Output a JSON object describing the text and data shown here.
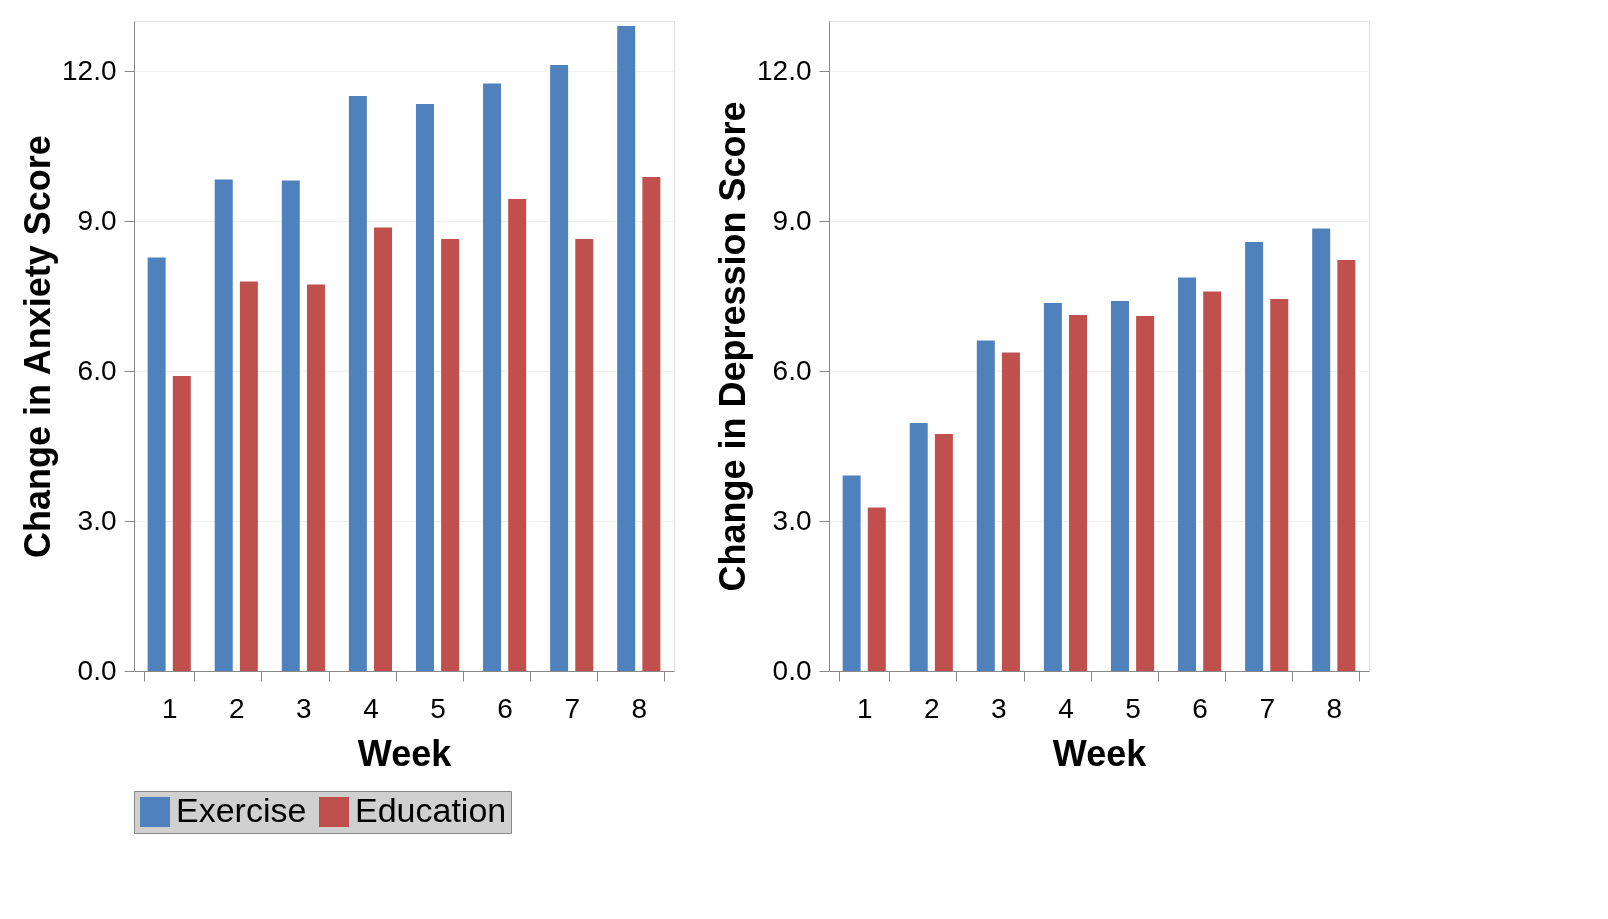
{
  "chart_data": [
    {
      "type": "bar",
      "xlabel": "Week",
      "ylabel": "Change in Anxiety Score",
      "categories": [
        "1",
        "2",
        "3",
        "4",
        "5",
        "6",
        "7",
        "8"
      ],
      "ylim": [
        0,
        13
      ],
      "yticks": [
        {
          "value": 0,
          "label": "0.0"
        },
        {
          "value": 3,
          "label": "3.0"
        },
        {
          "value": 6,
          "label": "6.0"
        },
        {
          "value": 9,
          "label": "9.0"
        },
        {
          "value": 12,
          "label": "12.0"
        }
      ],
      "grid": "y",
      "legend": "bottom",
      "series": [
        {
          "name": "Exercise",
          "color": "#4f81bd",
          "values": [
            8.27,
            9.83,
            9.81,
            11.5,
            11.34,
            11.75,
            12.12,
            12.9
          ]
        },
        {
          "name": "Education",
          "color": "#c0504d",
          "values": [
            5.9,
            7.79,
            7.73,
            8.87,
            8.64,
            9.44,
            8.64,
            9.88
          ]
        }
      ]
    },
    {
      "type": "bar",
      "xlabel": "Week",
      "ylabel": "Change in Depression Score",
      "categories": [
        "1",
        "2",
        "3",
        "4",
        "5",
        "6",
        "7",
        "8"
      ],
      "ylim": [
        0,
        13
      ],
      "yticks": [
        {
          "value": 0,
          "label": "0.0"
        },
        {
          "value": 3,
          "label": "3.0"
        },
        {
          "value": 6,
          "label": "6.0"
        },
        {
          "value": 9,
          "label": "9.0"
        },
        {
          "value": 12,
          "label": "12.0"
        }
      ],
      "grid": "y",
      "legend": "bottom",
      "series": [
        {
          "name": "Exercise",
          "color": "#4f81bd",
          "values": [
            3.91,
            4.96,
            6.61,
            7.36,
            7.4,
            7.87,
            8.58,
            8.85
          ]
        },
        {
          "name": "Education",
          "color": "#c0504d",
          "values": [
            3.27,
            4.74,
            6.37,
            7.12,
            7.1,
            7.59,
            7.44,
            8.22
          ]
        }
      ]
    }
  ]
}
